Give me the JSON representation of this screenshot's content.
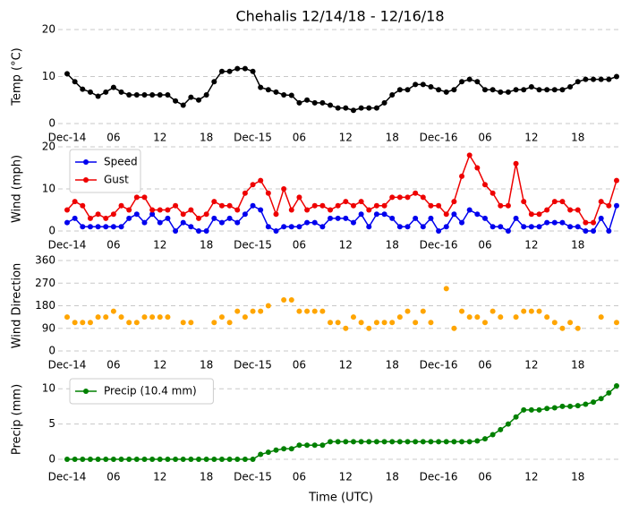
{
  "chart_data": [
    {
      "type": "line",
      "title": "Chehalis 12/14/18 - 12/16/18",
      "ylabel": "Temp ($^\\circ$C)",
      "color": "#000000",
      "x": [
        0,
        1,
        2,
        3,
        4,
        5,
        6,
        7,
        8,
        9,
        10,
        11,
        12,
        13,
        14,
        15,
        16,
        17,
        18,
        19,
        20,
        21,
        22,
        23,
        24,
        25,
        26,
        27,
        28,
        29,
        30,
        31,
        32,
        33,
        34,
        35,
        36,
        37,
        38,
        39,
        40,
        41,
        42,
        43,
        44,
        45,
        46,
        47,
        48,
        49,
        50,
        51,
        52,
        53,
        54,
        55,
        56,
        57,
        58,
        59,
        60,
        61,
        62,
        63,
        64,
        65,
        66,
        67,
        68,
        69,
        70,
        71
      ],
      "values": [
        10.6,
        8.9,
        7.3,
        6.7,
        5.8,
        6.7,
        7.7,
        6.7,
        6.1,
        6.1,
        6.1,
        6.1,
        6.1,
        6.1,
        4.8,
        3.9,
        5.6,
        5.0,
        6.1,
        8.9,
        11.1,
        11.1,
        11.7,
        11.7,
        11.1,
        7.7,
        7.2,
        6.7,
        6.1,
        6.0,
        4.4,
        5.0,
        4.4,
        4.4,
        3.9,
        3.3,
        3.3,
        2.8,
        3.3,
        3.3,
        3.3,
        4.4,
        6.1,
        7.2,
        7.2,
        8.3,
        8.3,
        7.8,
        7.2,
        6.7,
        7.2,
        8.9,
        9.4,
        8.9,
        7.2,
        7.2,
        6.7,
        6.7,
        7.2,
        7.2,
        7.8,
        7.2,
        7.2,
        7.2,
        7.2,
        7.8,
        8.9,
        9.4,
        9.4,
        9.4,
        9.4,
        10.0
      ],
      "xlim": [
        0,
        71
      ],
      "ylim": [
        0,
        20
      ],
      "yticks": [
        0,
        10,
        20
      ],
      "xticks": [
        {
          "value": 0,
          "label": "Dec-14"
        },
        {
          "value": 6,
          "label": "06"
        },
        {
          "value": 12,
          "label": "12"
        },
        {
          "value": 18,
          "label": "18"
        },
        {
          "value": 24,
          "label": "Dec-15"
        },
        {
          "value": 30,
          "label": "06"
        },
        {
          "value": 36,
          "label": "12"
        },
        {
          "value": 42,
          "label": "18"
        },
        {
          "value": 48,
          "label": "Dec-16"
        },
        {
          "value": 54,
          "label": "06"
        },
        {
          "value": 60,
          "label": "12"
        },
        {
          "value": 66,
          "label": "18"
        }
      ],
      "grid": true
    },
    {
      "type": "line",
      "ylabel": "Wind (mph)",
      "legend": "upper left",
      "x": [
        0,
        1,
        2,
        3,
        4,
        5,
        6,
        7,
        8,
        9,
        10,
        11,
        12,
        13,
        14,
        15,
        16,
        17,
        18,
        19,
        20,
        21,
        22,
        23,
        24,
        25,
        26,
        27,
        28,
        29,
        30,
        31,
        32,
        33,
        34,
        35,
        36,
        37,
        38,
        39,
        40,
        41,
        42,
        43,
        44,
        45,
        46,
        47,
        48,
        49,
        50,
        51,
        52,
        53,
        54,
        55,
        56,
        57,
        58,
        59,
        60,
        61,
        62,
        63,
        64,
        65,
        66,
        67,
        68,
        69,
        70,
        71
      ],
      "series": [
        {
          "name": "Speed",
          "color": "#0000ee",
          "values": [
            2,
            3,
            1,
            1,
            1,
            1,
            1,
            1,
            3,
            4,
            2,
            4,
            2,
            3,
            0,
            2,
            1,
            0,
            0,
            3,
            2,
            3,
            2,
            4,
            6,
            5,
            1,
            0,
            1,
            1,
            1,
            2,
            2,
            1,
            3,
            3,
            3,
            2,
            4,
            1,
            4,
            4,
            3,
            1,
            1,
            3,
            1,
            3,
            0,
            1,
            4,
            2,
            5,
            4,
            3,
            1,
            1,
            0,
            3,
            1,
            1,
            1,
            2,
            2,
            2,
            1,
            1,
            0,
            0,
            3,
            0,
            6
          ]
        },
        {
          "name": "Gust",
          "color": "#ee0000",
          "values": [
            5,
            7,
            6,
            3,
            4,
            3,
            4,
            6,
            5,
            8,
            8,
            5,
            5,
            5,
            6,
            4,
            5,
            3,
            4,
            7,
            6,
            6,
            5,
            9,
            11,
            12,
            9,
            4,
            10,
            5,
            8,
            5,
            6,
            6,
            5,
            6,
            7,
            6,
            7,
            5,
            6,
            6,
            8,
            8,
            8,
            9,
            8,
            6,
            6,
            4,
            7,
            13,
            18,
            15,
            11,
            9,
            6,
            6,
            16,
            7,
            4,
            4,
            5,
            7,
            7,
            5,
            5,
            2,
            2,
            7,
            6,
            12
          ]
        }
      ],
      "xlim": [
        0,
        71
      ],
      "ylim": [
        0,
        20
      ],
      "yticks": [
        0,
        10,
        20
      ],
      "xticks": [
        {
          "value": 0,
          "label": "Dec-14"
        },
        {
          "value": 6,
          "label": "06"
        },
        {
          "value": 12,
          "label": "12"
        },
        {
          "value": 18,
          "label": "18"
        },
        {
          "value": 24,
          "label": "Dec-15"
        },
        {
          "value": 30,
          "label": "06"
        },
        {
          "value": 36,
          "label": "12"
        },
        {
          "value": 42,
          "label": "18"
        },
        {
          "value": 48,
          "label": "Dec-16"
        },
        {
          "value": 54,
          "label": "06"
        },
        {
          "value": 60,
          "label": "12"
        },
        {
          "value": 66,
          "label": "18"
        }
      ],
      "grid": true
    },
    {
      "type": "scatter",
      "ylabel": "Wind Direction",
      "color": "#ffa500",
      "x": [
        0,
        1,
        2,
        3,
        4,
        5,
        6,
        7,
        8,
        9,
        10,
        11,
        12,
        13,
        14,
        15,
        16,
        17,
        18,
        19,
        20,
        21,
        22,
        23,
        24,
        25,
        26,
        27,
        28,
        29,
        30,
        31,
        32,
        33,
        34,
        35,
        36,
        37,
        38,
        39,
        40,
        41,
        42,
        43,
        44,
        45,
        46,
        47,
        48,
        49,
        50,
        51,
        52,
        53,
        54,
        55,
        56,
        57,
        58,
        59,
        60,
        61,
        62,
        63,
        64,
        65,
        66,
        67,
        68,
        69,
        70,
        71
      ],
      "values": [
        135,
        113,
        113,
        113,
        135,
        135,
        158,
        135,
        113,
        113,
        135,
        135,
        135,
        135,
        null,
        113,
        113,
        null,
        null,
        113,
        135,
        113,
        158,
        135,
        158,
        158,
        180,
        null,
        203,
        203,
        158,
        158,
        158,
        158,
        113,
        113,
        90,
        135,
        113,
        90,
        113,
        113,
        113,
        135,
        158,
        113,
        158,
        113,
        null,
        248,
        90,
        158,
        135,
        135,
        113,
        158,
        135,
        null,
        135,
        158,
        158,
        158,
        135,
        113,
        90,
        113,
        90,
        null,
        null,
        135,
        null,
        113
      ],
      "xlim": [
        0,
        71
      ],
      "ylim": [
        0,
        360
      ],
      "yticks": [
        0,
        90,
        180,
        270,
        360
      ],
      "xticks": [
        {
          "value": 0,
          "label": "Dec-14"
        },
        {
          "value": 6,
          "label": "06"
        },
        {
          "value": 12,
          "label": "12"
        },
        {
          "value": 18,
          "label": "18"
        },
        {
          "value": 24,
          "label": "Dec-15"
        },
        {
          "value": 30,
          "label": "06"
        },
        {
          "value": 36,
          "label": "12"
        },
        {
          "value": 42,
          "label": "18"
        },
        {
          "value": 48,
          "label": "Dec-16"
        },
        {
          "value": 54,
          "label": "06"
        },
        {
          "value": 60,
          "label": "12"
        },
        {
          "value": 66,
          "label": "18"
        }
      ],
      "grid": true
    },
    {
      "type": "line",
      "ylabel": "Precip (mm)",
      "xlabel": "Time (UTC)",
      "legend": "upper left",
      "x": [
        0,
        1,
        2,
        3,
        4,
        5,
        6,
        7,
        8,
        9,
        10,
        11,
        12,
        13,
        14,
        15,
        16,
        17,
        18,
        19,
        20,
        21,
        22,
        23,
        24,
        25,
        26,
        27,
        28,
        29,
        30,
        31,
        32,
        33,
        34,
        35,
        36,
        37,
        38,
        39,
        40,
        41,
        42,
        43,
        44,
        45,
        46,
        47,
        48,
        49,
        50,
        51,
        52,
        53,
        54,
        55,
        56,
        57,
        58,
        59,
        60,
        61,
        62,
        63,
        64,
        65,
        66,
        67,
        68,
        69,
        70,
        71
      ],
      "series": [
        {
          "name": "Precip (10.4 mm)",
          "color": "#008000",
          "values": [
            0,
            0,
            0,
            0,
            0,
            0,
            0,
            0,
            0,
            0,
            0,
            0,
            0,
            0,
            0,
            0,
            0,
            0,
            0,
            0,
            0,
            0,
            0,
            0,
            0,
            0.7,
            1.0,
            1.3,
            1.5,
            1.5,
            2.0,
            2.0,
            2.0,
            2.0,
            2.5,
            2.5,
            2.5,
            2.5,
            2.5,
            2.5,
            2.5,
            2.5,
            2.5,
            2.5,
            2.5,
            2.5,
            2.5,
            2.5,
            2.5,
            2.5,
            2.5,
            2.5,
            2.5,
            2.6,
            2.9,
            3.5,
            4.2,
            5.0,
            6.0,
            7.0,
            7.0,
            7.0,
            7.2,
            7.3,
            7.5,
            7.5,
            7.6,
            7.8,
            8.1,
            8.6,
            9.4,
            10.4
          ]
        }
      ],
      "xlim": [
        0,
        71
      ],
      "ylim": [
        -0.5,
        11.8
      ],
      "yticks": [
        0,
        5,
        10
      ],
      "xticks": [
        {
          "value": 0,
          "label": "Dec-14"
        },
        {
          "value": 6,
          "label": "06"
        },
        {
          "value": 12,
          "label": "12"
        },
        {
          "value": 18,
          "label": "18"
        },
        {
          "value": 24,
          "label": "Dec-15"
        },
        {
          "value": 30,
          "label": "06"
        },
        {
          "value": 36,
          "label": "12"
        },
        {
          "value": 42,
          "label": "18"
        },
        {
          "value": 48,
          "label": "Dec-16"
        },
        {
          "value": 54,
          "label": "06"
        },
        {
          "value": 60,
          "label": "12"
        },
        {
          "value": 66,
          "label": "18"
        }
      ],
      "grid": true
    }
  ]
}
